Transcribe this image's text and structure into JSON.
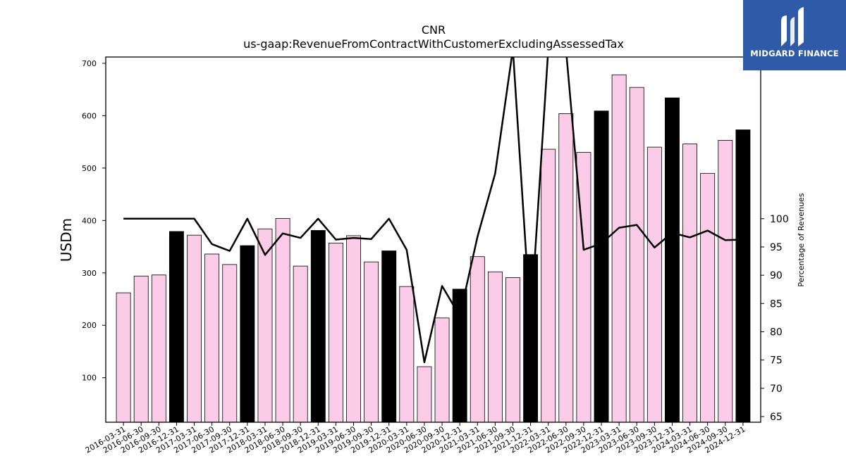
{
  "logo": {
    "text": "MIDGARD FINANCE"
  },
  "chart_data": {
    "type": "bar",
    "title": "CNR",
    "subtitle": "us-gaap:RevenueFromContractWithCustomerExcludingAssessedTax",
    "ylabel": "USDm",
    "y2label": "Percentage of Revenues",
    "ylim": [
      15,
      712
    ],
    "y2lim": [
      64,
      128.6
    ],
    "yticks": [
      100,
      200,
      300,
      400,
      500,
      600,
      700
    ],
    "y2ticks": [
      65,
      70,
      75,
      80,
      85,
      90,
      95,
      100
    ],
    "categories": [
      "2016-03-31",
      "2016-06-30",
      "2016-09-30",
      "2016-12-31",
      "2017-03-31",
      "2017-06-30",
      "2017-09-30",
      "2017-12-31",
      "2018-03-31",
      "2018-06-30",
      "2018-09-30",
      "2018-12-31",
      "2019-03-31",
      "2019-06-30",
      "2019-09-30",
      "2019-12-31",
      "2020-03-31",
      "2020-06-30",
      "2020-09-30",
      "2020-12-31",
      "2021-03-31",
      "2021-06-30",
      "2021-09-30",
      "2021-12-31",
      "2022-03-31",
      "2022-06-30",
      "2022-09-30",
      "2022-12-31",
      "2023-03-31",
      "2023-06-30",
      "2023-09-30",
      "2023-12-31",
      "2024-03-31",
      "2024-06-30",
      "2024-09-30",
      "2024-12-31"
    ],
    "series": [
      {
        "type": "bar",
        "axis": "left",
        "values": [
          262,
          294,
          296,
          379,
          372,
          336,
          316,
          352,
          384,
          404,
          313,
          381,
          357,
          371,
          321,
          342,
          274,
          121,
          214,
          269,
          331,
          302,
          291,
          335,
          536,
          604,
          530,
          609,
          678,
          654,
          540,
          634,
          546,
          490,
          553,
          573
        ],
        "colors": {
          "quarter": "#fbcce7",
          "year_end": "#000000",
          "edge": "#000000"
        }
      },
      {
        "type": "line",
        "axis": "right",
        "values": [
          100,
          100,
          100,
          100,
          100,
          95.5,
          94.3,
          100,
          93.6,
          97.4,
          96.6,
          100,
          96.3,
          96.6,
          96.4,
          100,
          94.5,
          74.6,
          88.1,
          82.8,
          96.8,
          108,
          130,
          81.5,
          130,
          130,
          94.5,
          95.6,
          98.4,
          98.9,
          94.9,
          97.5,
          96.7,
          97.9,
          96.2,
          96.3
        ],
        "color": "#000000"
      }
    ]
  }
}
